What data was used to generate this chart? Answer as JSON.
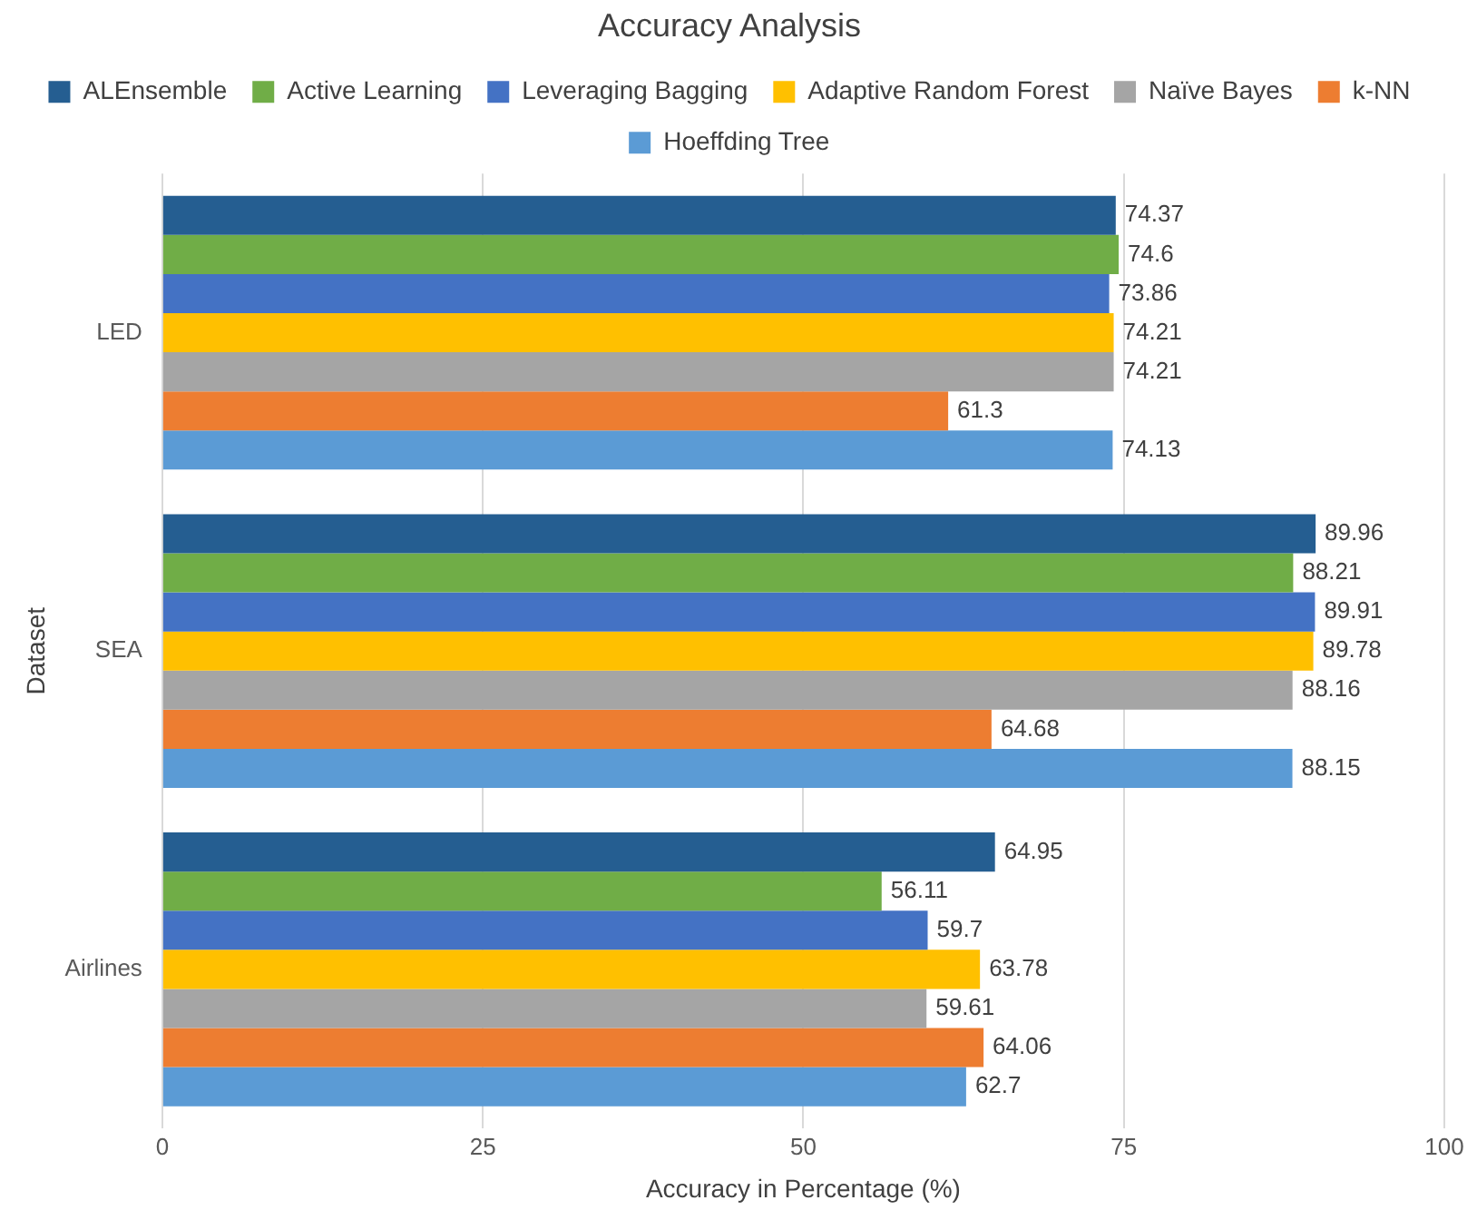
{
  "chart_data": {
    "type": "bar",
    "orientation": "horizontal",
    "title": "Accuracy Analysis",
    "xlabel": "Accuracy in Percentage (%)",
    "ylabel": "Dataset",
    "categories": [
      "LED",
      "SEA",
      "Airlines"
    ],
    "series": [
      {
        "name": "ALEnsemble",
        "color": "#255e91",
        "values": [
          74.37,
          89.96,
          64.95
        ]
      },
      {
        "name": "Active Learning",
        "color": "#70ad47",
        "values": [
          74.6,
          88.21,
          56.11
        ]
      },
      {
        "name": "Leveraging Bagging",
        "color": "#4472c4",
        "values": [
          73.86,
          89.91,
          59.7
        ]
      },
      {
        "name": "Adaptive Random Forest",
        "color": "#ffc000",
        "values": [
          74.21,
          89.78,
          63.78
        ]
      },
      {
        "name": "Naïve Bayes",
        "color": "#a5a5a5",
        "values": [
          74.21,
          88.16,
          59.61
        ]
      },
      {
        "name": "k-NN",
        "color": "#ed7d31",
        "values": [
          61.3,
          64.68,
          64.06
        ]
      },
      {
        "name": "Hoeffding Tree",
        "color": "#5b9bd5",
        "values": [
          74.13,
          88.15,
          62.7
        ]
      }
    ],
    "xlim": [
      0,
      100
    ],
    "xticks": [
      0,
      25,
      50,
      75,
      100
    ],
    "grid": "x",
    "legend": "top",
    "data_labels": true
  }
}
